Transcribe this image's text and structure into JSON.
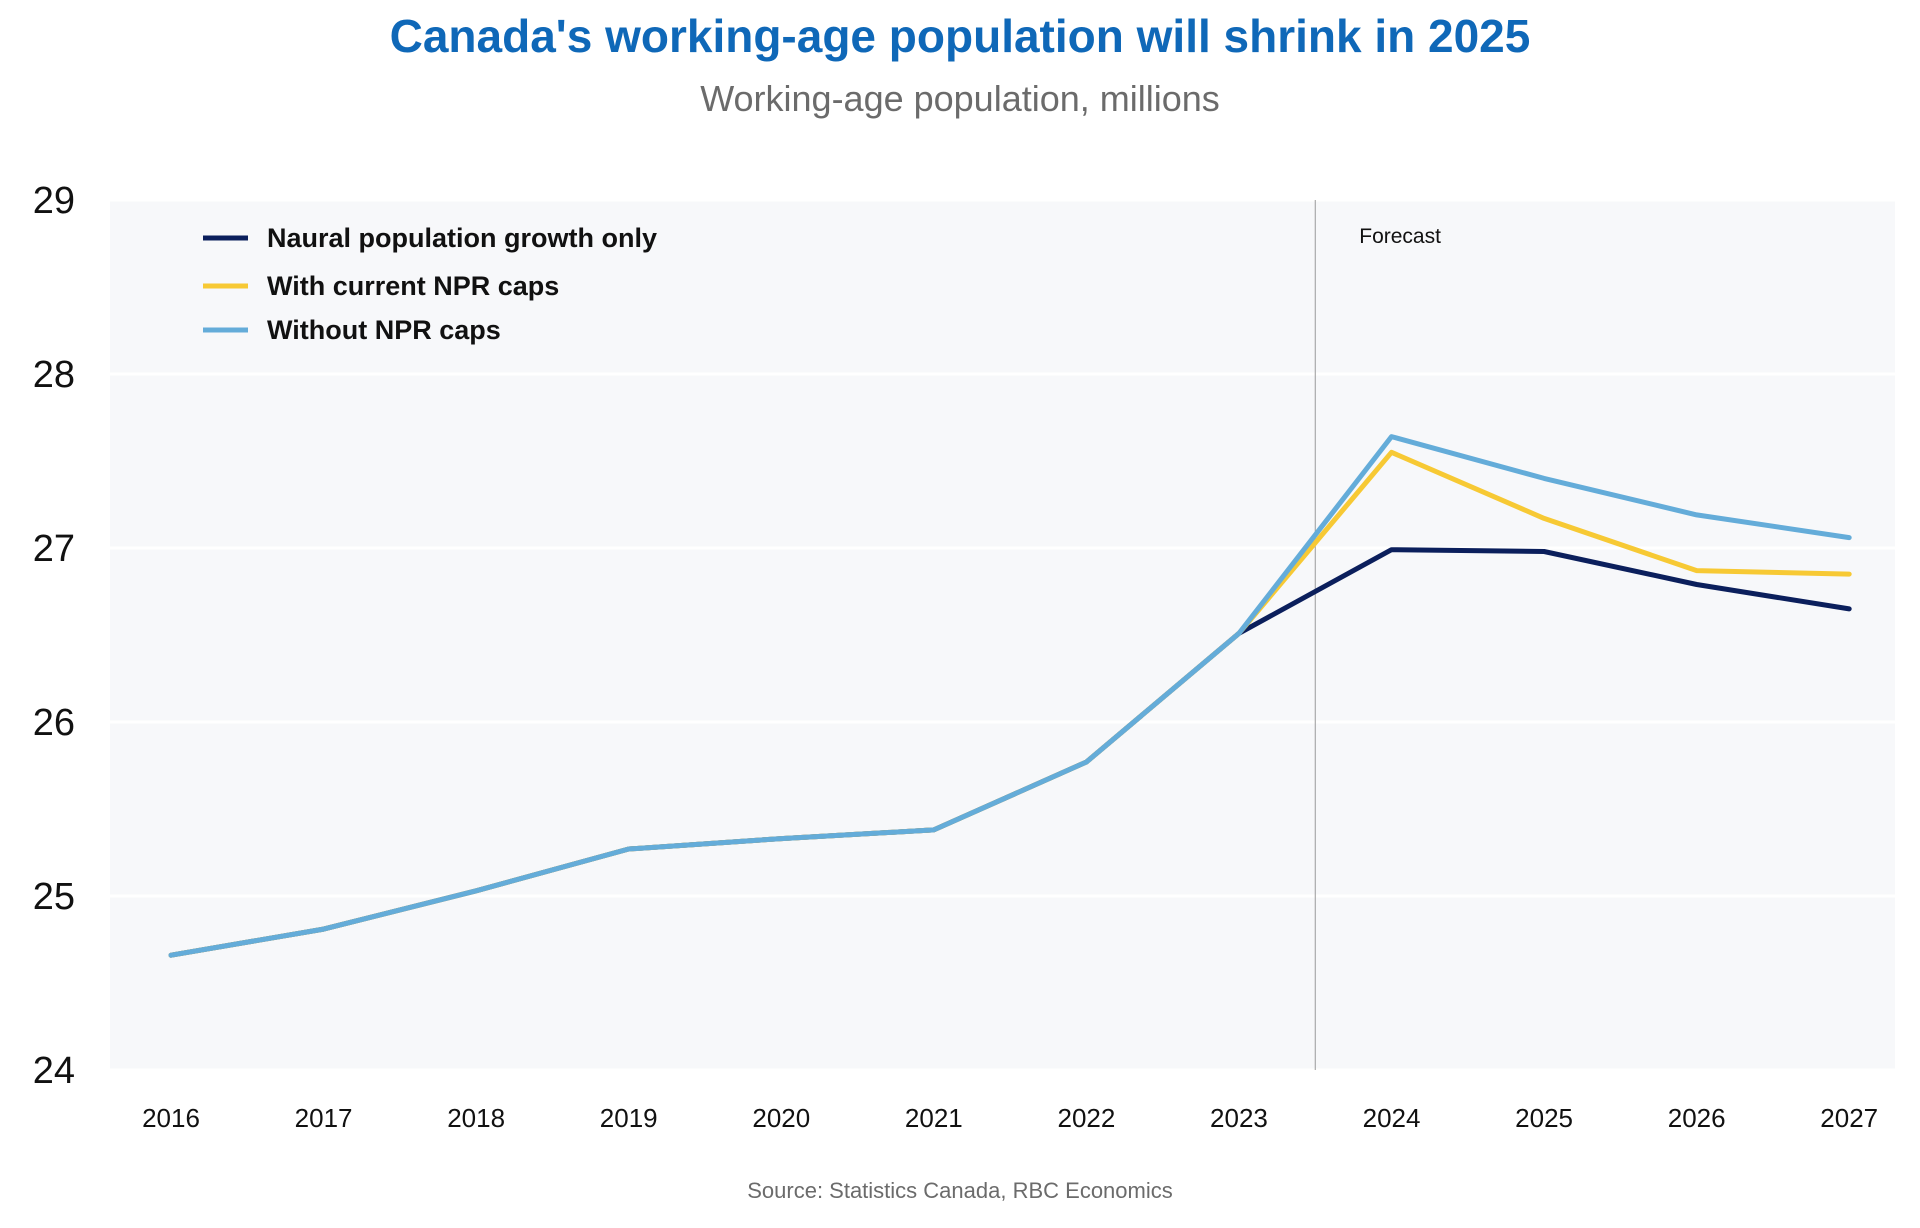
{
  "chart_data": {
    "type": "line",
    "title": "Canada's working-age population will shrink in 2025",
    "subtitle": "Working-age population, millions",
    "source": "Source: Statistics Canada, RBC Economics",
    "annotation": "Forecast",
    "forecast_start": 2023.5,
    "x": [
      2016,
      2017,
      2018,
      2019,
      2020,
      2021,
      2022,
      2023,
      2024,
      2025,
      2026,
      2027
    ],
    "x_tick_labels": [
      "2016",
      "2017",
      "2018",
      "2019",
      "2020",
      "2021",
      "2022",
      "2023",
      "2024",
      "2025",
      "2026",
      "2027"
    ],
    "y_tick_labels": [
      "24",
      "25",
      "26",
      "27",
      "28",
      "29"
    ],
    "y_ticks": [
      24,
      25,
      26,
      27,
      28,
      29
    ],
    "ylim": [
      24,
      29
    ],
    "xlim": [
      2015.6,
      2027.3
    ],
    "grid": "horizontal",
    "legend_position": "top-left",
    "series": [
      {
        "name": "Naural population growth only",
        "color": "#0b1f5c",
        "values": [
          24.66,
          24.81,
          25.03,
          25.27,
          25.33,
          25.38,
          25.77,
          26.51,
          26.99,
          26.98,
          26.79,
          26.65
        ]
      },
      {
        "name": "With current NPR caps",
        "color": "#f7c934",
        "values": [
          24.66,
          24.81,
          25.03,
          25.27,
          25.33,
          25.38,
          25.77,
          26.51,
          27.55,
          27.17,
          26.87,
          26.85
        ]
      },
      {
        "name": "Without NPR caps",
        "color": "#64acd9",
        "values": [
          24.66,
          24.81,
          25.03,
          25.27,
          25.33,
          25.38,
          25.77,
          26.51,
          27.64,
          27.4,
          27.19,
          27.06
        ]
      }
    ],
    "colors": {
      "title": "#0f68b8",
      "subtitle": "#6b6b6b",
      "source": "#6b6b6b",
      "plot_background": "#f7f8fa",
      "gridline": "#ffffff",
      "forecast_line": "#9a9a9a"
    }
  }
}
